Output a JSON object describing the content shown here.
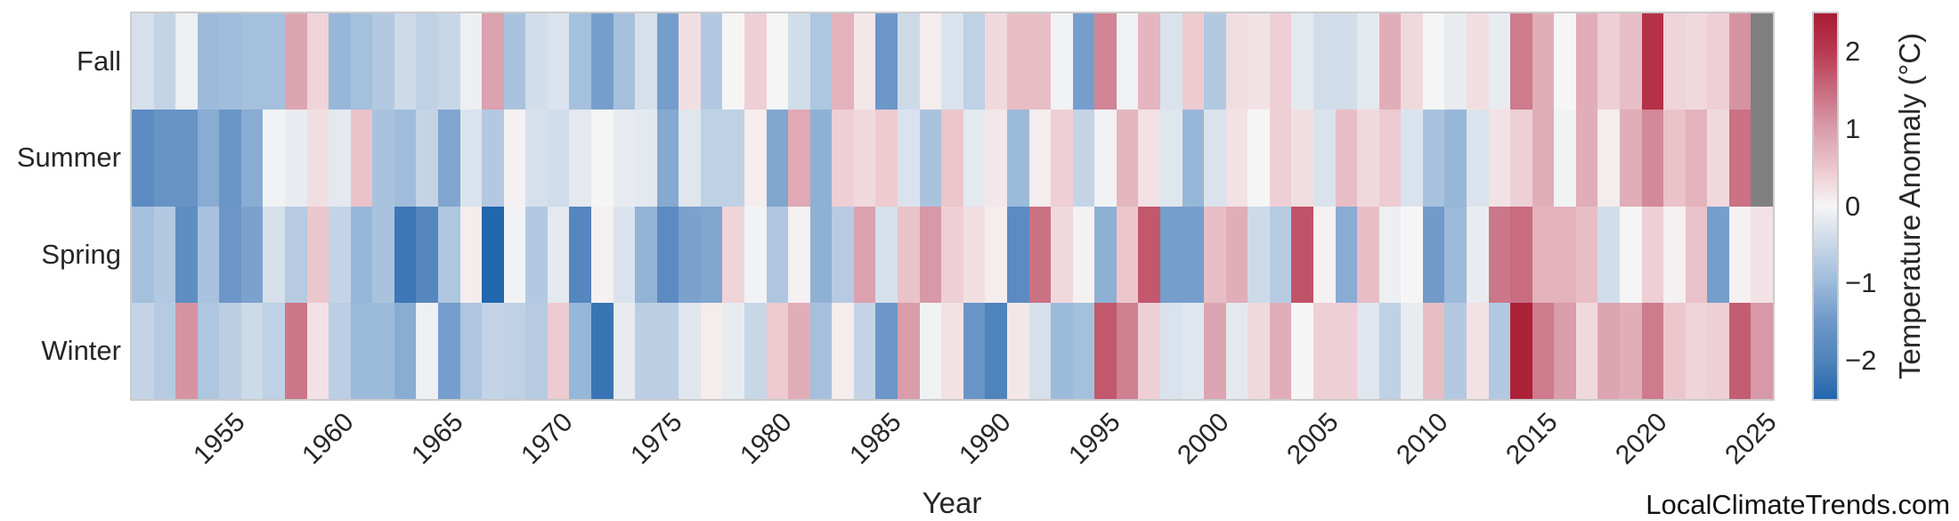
{
  "watermark": "LocalClimateTrends.com",
  "chart_data": {
    "type": "heatmap",
    "xlabel": "Year",
    "colorbar_label": "Temperature Anomaly (°C)",
    "x_start": 1951,
    "x_end": 2025,
    "xticks": [
      1955,
      1960,
      1965,
      1970,
      1975,
      1980,
      1985,
      1990,
      1995,
      2000,
      2005,
      2010,
      2015,
      2020,
      2025
    ],
    "colorbar_ticks": [
      {
        "value": 2,
        "label": "2"
      },
      {
        "value": 1,
        "label": "1"
      },
      {
        "value": 0,
        "label": "0"
      },
      {
        "value": -1,
        "label": "−1"
      },
      {
        "value": -2,
        "label": "−2"
      }
    ],
    "vmin": -2.5,
    "vmax": 2.5,
    "nan_color": "#808080",
    "colormap_stops": [
      [
        -2.5,
        "#2266ae"
      ],
      [
        -2.0,
        "#4f83bb"
      ],
      [
        -1.5,
        "#6d97c8"
      ],
      [
        -1.0,
        "#9cbada"
      ],
      [
        -0.5,
        "#c8d7e7"
      ],
      [
        0.0,
        "#f6f5f5"
      ],
      [
        0.5,
        "#ecc6cd"
      ],
      [
        1.0,
        "#d99dab"
      ],
      [
        1.5,
        "#c96c80"
      ],
      [
        2.0,
        "#b93a50"
      ],
      [
        2.5,
        "#a81c33"
      ]
    ],
    "rows": [
      {
        "name": "Fall",
        "values": [
          -0.35,
          -0.55,
          -0.1,
          -1.0,
          -0.95,
          -0.9,
          -0.9,
          0.9,
          0.35,
          -1.05,
          -0.9,
          -0.75,
          -0.45,
          -0.6,
          -0.5,
          -0.1,
          0.95,
          -0.85,
          -0.4,
          -0.3,
          -0.9,
          -1.4,
          -0.9,
          -0.35,
          -1.4,
          0.25,
          -0.75,
          0.0,
          0.4,
          0.0,
          -0.4,
          -0.8,
          0.75,
          0.15,
          -1.5,
          -0.45,
          0.1,
          -0.3,
          -0.6,
          0.3,
          0.6,
          0.6,
          -0.05,
          -1.4,
          1.25,
          -0.05,
          0.7,
          -0.3,
          0.45,
          -0.75,
          0.25,
          0.2,
          0.4,
          -0.2,
          -0.4,
          -0.4,
          -0.2,
          0.8,
          0.3,
          0.0,
          -0.15,
          0.25,
          -0.15,
          1.35,
          0.8,
          0.0,
          0.8,
          0.4,
          0.6,
          2.15,
          0.35,
          0.3,
          0.4,
          1.1,
          null
        ]
      },
      {
        "name": "Summer",
        "values": [
          -1.8,
          -1.6,
          -1.6,
          -1.2,
          -1.55,
          -1.2,
          -0.05,
          -0.15,
          0.25,
          -0.2,
          0.55,
          -0.85,
          -0.95,
          -0.55,
          -1.3,
          -0.3,
          -0.75,
          0.05,
          -0.35,
          -0.4,
          -0.2,
          0.0,
          -0.15,
          -0.2,
          -1.25,
          -0.25,
          -0.6,
          -0.6,
          0.1,
          -1.3,
          0.85,
          -1.15,
          0.4,
          0.3,
          0.45,
          -0.3,
          -0.85,
          0.5,
          -0.2,
          0.15,
          -1.0,
          0.1,
          0.4,
          -0.55,
          -0.05,
          0.7,
          0.2,
          -0.25,
          -1.05,
          -0.3,
          0.2,
          0.0,
          0.4,
          0.25,
          -0.3,
          0.6,
          0.3,
          0.45,
          -0.3,
          -0.85,
          -1.05,
          -0.3,
          0.2,
          0.4,
          0.8,
          -0.05,
          0.8,
          0.1,
          0.8,
          1.2,
          0.55,
          0.75,
          0.3,
          1.45,
          null
        ]
      },
      {
        "name": "Spring",
        "values": [
          -0.9,
          -0.75,
          -1.75,
          -0.85,
          -1.5,
          -1.35,
          -0.35,
          -0.7,
          0.5,
          -0.55,
          -1.05,
          -0.85,
          -2.2,
          -1.9,
          -0.8,
          0.1,
          -2.5,
          -0.05,
          -0.75,
          -0.2,
          -1.9,
          0.05,
          -0.3,
          -1.1,
          -1.8,
          -1.35,
          -1.3,
          0.35,
          -0.05,
          -0.8,
          0.05,
          -1.15,
          -0.7,
          0.95,
          -0.35,
          0.55,
          1.05,
          0.4,
          0.25,
          0.1,
          -1.8,
          1.45,
          0.3,
          0.05,
          -1.15,
          0.5,
          1.7,
          -1.4,
          -1.4,
          0.6,
          0.8,
          -0.45,
          -0.7,
          1.75,
          0.05,
          -1.2,
          0.6,
          -0.1,
          0.0,
          -1.45,
          -1.0,
          -0.15,
          1.4,
          1.5,
          0.75,
          0.75,
          0.6,
          -0.4,
          0.0,
          0.4,
          0.05,
          0.55,
          -1.4,
          0.05,
          0.2
        ]
      },
      {
        "name": "Winter",
        "values": [
          -0.55,
          -0.7,
          1.1,
          -0.8,
          -0.65,
          -0.45,
          -0.6,
          1.4,
          0.2,
          -0.65,
          -1.0,
          -1.0,
          -1.2,
          -0.1,
          -1.4,
          -0.8,
          -0.55,
          -0.6,
          -0.7,
          0.45,
          -1.05,
          -2.25,
          -0.15,
          -0.65,
          -0.65,
          -0.25,
          0.1,
          -0.15,
          -0.5,
          0.45,
          0.8,
          -0.9,
          0.1,
          -0.55,
          -1.5,
          1.0,
          -0.05,
          0.2,
          -1.55,
          -2.0,
          0.15,
          -0.35,
          -1.0,
          -0.9,
          1.7,
          1.3,
          0.4,
          -0.3,
          -0.25,
          0.9,
          -0.2,
          0.3,
          0.8,
          0.0,
          0.4,
          0.4,
          -0.25,
          -0.6,
          -0.15,
          0.6,
          -0.75,
          0.2,
          -0.75,
          2.4,
          1.35,
          1.0,
          0.3,
          0.9,
          0.8,
          1.35,
          0.5,
          0.35,
          0.4,
          1.65,
          1.05
        ]
      }
    ]
  }
}
